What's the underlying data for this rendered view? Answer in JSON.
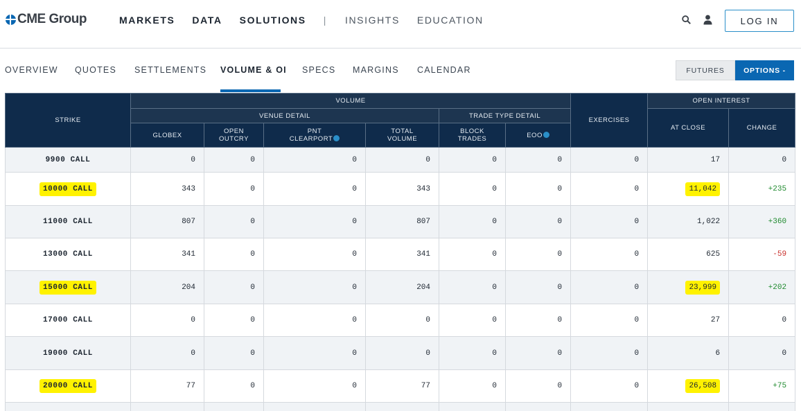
{
  "header": {
    "logo_text": "CME Group",
    "nav": [
      {
        "label": "MARKETS",
        "bold": true
      },
      {
        "label": "DATA",
        "bold": true
      },
      {
        "label": "SOLUTIONS",
        "bold": true
      },
      {
        "label": "INSIGHTS",
        "bold": false
      },
      {
        "label": "EDUCATION",
        "bold": false
      }
    ],
    "separator": "|",
    "login_label": "LOG IN"
  },
  "subnav": {
    "tabs": [
      "OVERVIEW",
      "QUOTES",
      "SETTLEMENTS",
      "VOLUME & OI",
      "SPECS",
      "MARGINS",
      "CALENDAR"
    ],
    "active_tab": "VOLUME & OI",
    "toggle": {
      "futures": "FUTURES",
      "options": "OPTIONS -"
    }
  },
  "table": {
    "headers": {
      "strike": "STRIKE",
      "volume": "VOLUME",
      "venue_detail": "VENUE DETAIL",
      "trade_type_detail": "TRADE TYPE DETAIL",
      "exercises": "EXERCISES",
      "open_interest": "OPEN INTEREST",
      "globex": "GLOBEX",
      "open_outcry": "OPEN\nOUTCRY",
      "pnt_clearport": "PNT\nCLEARPORT",
      "total_volume": "TOTAL\nVOLUME",
      "block_trades": "BLOCK\nTRADES",
      "eoo": "EOO",
      "at_close": "AT CLOSE",
      "change": "CHANGE"
    },
    "rows": [
      {
        "strike": "9900 CALL",
        "globex": "0",
        "open_outcry": "0",
        "pnt_clearport": "0",
        "total_volume": "0",
        "block_trades": "0",
        "eoo": "0",
        "exercises": "0",
        "at_close": "17",
        "change": "0",
        "change_dir": "zero",
        "highlight": false
      },
      {
        "strike": "10000 CALL",
        "globex": "343",
        "open_outcry": "0",
        "pnt_clearport": "0",
        "total_volume": "343",
        "block_trades": "0",
        "eoo": "0",
        "exercises": "0",
        "at_close": "11,042",
        "change": "+235",
        "change_dir": "pos",
        "highlight": true
      },
      {
        "strike": "11000 CALL",
        "globex": "807",
        "open_outcry": "0",
        "pnt_clearport": "0",
        "total_volume": "807",
        "block_trades": "0",
        "eoo": "0",
        "exercises": "0",
        "at_close": "1,022",
        "change": "+360",
        "change_dir": "pos",
        "highlight": false
      },
      {
        "strike": "13000 CALL",
        "globex": "341",
        "open_outcry": "0",
        "pnt_clearport": "0",
        "total_volume": "341",
        "block_trades": "0",
        "eoo": "0",
        "exercises": "0",
        "at_close": "625",
        "change": "-59",
        "change_dir": "neg",
        "highlight": false
      },
      {
        "strike": "15000 CALL",
        "globex": "204",
        "open_outcry": "0",
        "pnt_clearport": "0",
        "total_volume": "204",
        "block_trades": "0",
        "eoo": "0",
        "exercises": "0",
        "at_close": "23,999",
        "change": "+202",
        "change_dir": "pos",
        "highlight": true
      },
      {
        "strike": "17000 CALL",
        "globex": "0",
        "open_outcry": "0",
        "pnt_clearport": "0",
        "total_volume": "0",
        "block_trades": "0",
        "eoo": "0",
        "exercises": "0",
        "at_close": "27",
        "change": "0",
        "change_dir": "zero",
        "highlight": false
      },
      {
        "strike": "19000 CALL",
        "globex": "0",
        "open_outcry": "0",
        "pnt_clearport": "0",
        "total_volume": "0",
        "block_trades": "0",
        "eoo": "0",
        "exercises": "0",
        "at_close": "6",
        "change": "0",
        "change_dir": "zero",
        "highlight": false
      },
      {
        "strike": "20000 CALL",
        "globex": "77",
        "open_outcry": "0",
        "pnt_clearport": "0",
        "total_volume": "77",
        "block_trades": "0",
        "eoo": "0",
        "exercises": "0",
        "at_close": "26,508",
        "change": "+75",
        "change_dir": "pos",
        "highlight": true
      },
      {
        "strike": "",
        "globex": "",
        "open_outcry": "",
        "pnt_clearport": "",
        "total_volume": "",
        "block_trades": "",
        "eoo": "",
        "exercises": "",
        "at_close": "",
        "change": "",
        "change_dir": "zero",
        "highlight": false
      }
    ]
  },
  "colors": {
    "header_navy": "#0f2b4b",
    "accent_blue": "#0a67b2",
    "highlight_yellow": "#fff200",
    "positive_green": "#1f8a2e",
    "negative_red": "#c9302c"
  },
  "icons": [
    "globe-icon",
    "search-icon",
    "user-icon",
    "info-icon"
  ]
}
